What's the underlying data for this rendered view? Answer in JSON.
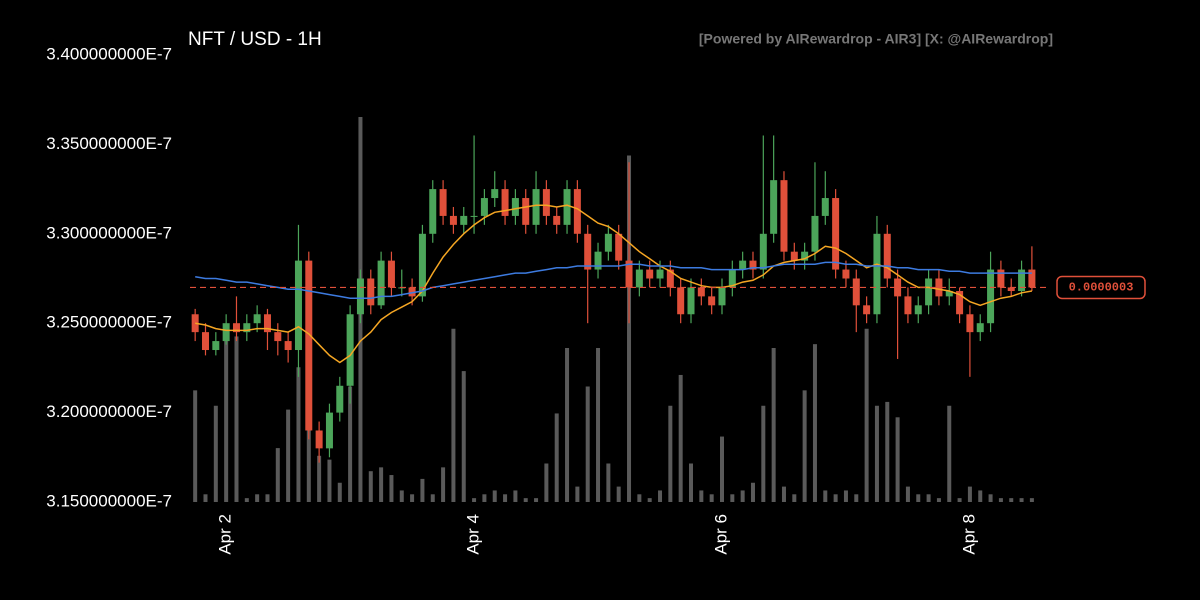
{
  "chart_data": {
    "type": "candlestick",
    "title": "NFT / USD - 1H",
    "watermark": "[Powered by AIRewardrop - AIR3] [X: @AIRewardrop]",
    "categories": [
      null,
      null,
      null,
      "Apr 2",
      null,
      null,
      null,
      null,
      null,
      null,
      null,
      null,
      null,
      null,
      null,
      null,
      null,
      null,
      null,
      null,
      null,
      null,
      null,
      null,
      null,
      null,
      null,
      "Apr 4",
      null,
      null,
      null,
      null,
      null,
      null,
      null,
      null,
      null,
      null,
      null,
      null,
      null,
      null,
      null,
      null,
      null,
      null,
      null,
      null,
      null,
      null,
      null,
      "Apr 6",
      null,
      null,
      null,
      null,
      null,
      null,
      null,
      null,
      null,
      null,
      null,
      null,
      null,
      null,
      null,
      null,
      null,
      null,
      null,
      null,
      null,
      null,
      null,
      "Apr 8",
      null,
      null,
      null,
      null,
      null,
      null
    ],
    "open": [
      3.255e-07,
      3.245e-07,
      3.235e-07,
      3.24e-07,
      3.25e-07,
      3.245e-07,
      3.25e-07,
      3.255e-07,
      3.245e-07,
      3.24e-07,
      3.235e-07,
      3.285e-07,
      3.19e-07,
      3.18e-07,
      3.2e-07,
      3.215e-07,
      3.255e-07,
      3.275e-07,
      3.26e-07,
      3.285e-07,
      3.27e-07,
      3.27e-07,
      3.265e-07,
      3.3e-07,
      3.325e-07,
      3.31e-07,
      3.305e-07,
      3.31e-07,
      3.31e-07,
      3.32e-07,
      3.325e-07,
      3.31e-07,
      3.32e-07,
      3.305e-07,
      3.325e-07,
      3.31e-07,
      3.305e-07,
      3.325e-07,
      3.3e-07,
      3.28e-07,
      3.29e-07,
      3.3e-07,
      3.285e-07,
      3.27e-07,
      3.28e-07,
      3.275e-07,
      3.28e-07,
      3.27e-07,
      3.255e-07,
      3.27e-07,
      3.265e-07,
      3.26e-07,
      3.27e-07,
      3.28e-07,
      3.285e-07,
      3.28e-07,
      3.3e-07,
      3.33e-07,
      3.29e-07,
      3.285e-07,
      3.29e-07,
      3.31e-07,
      3.32e-07,
      3.28e-07,
      3.275e-07,
      3.26e-07,
      3.255e-07,
      3.3e-07,
      3.275e-07,
      3.265e-07,
      3.255e-07,
      3.26e-07,
      3.275e-07,
      3.265e-07,
      3.268e-07,
      3.255e-07,
      3.245e-07,
      3.25e-07,
      3.28e-07,
      3.27e-07,
      3.268e-07,
      3.28e-07
    ],
    "high": [
      3.258e-07,
      3.25e-07,
      3.245e-07,
      3.255e-07,
      3.265e-07,
      3.255e-07,
      3.26e-07,
      3.258e-07,
      3.25e-07,
      3.245e-07,
      3.305e-07,
      3.29e-07,
      3.195e-07,
      3.205e-07,
      3.22e-07,
      3.26e-07,
      3.28e-07,
      3.28e-07,
      3.29e-07,
      3.29e-07,
      3.28e-07,
      3.275e-07,
      3.305e-07,
      3.33e-07,
      3.33e-07,
      3.315e-07,
      3.315e-07,
      3.355e-07,
      3.325e-07,
      3.335e-07,
      3.33e-07,
      3.325e-07,
      3.325e-07,
      3.335e-07,
      3.33e-07,
      3.315e-07,
      3.33e-07,
      3.33e-07,
      3.305e-07,
      3.295e-07,
      3.305e-07,
      3.305e-07,
      3.34e-07,
      3.285e-07,
      3.285e-07,
      3.285e-07,
      3.285e-07,
      3.275e-07,
      3.275e-07,
      3.275e-07,
      3.27e-07,
      3.275e-07,
      3.285e-07,
      3.29e-07,
      3.29e-07,
      3.355e-07,
      3.355e-07,
      3.335e-07,
      3.295e-07,
      3.295e-07,
      3.34e-07,
      3.335e-07,
      3.325e-07,
      3.285e-07,
      3.28e-07,
      3.265e-07,
      3.31e-07,
      3.305e-07,
      3.28e-07,
      3.27e-07,
      3.265e-07,
      3.28e-07,
      3.28e-07,
      3.275e-07,
      3.27e-07,
      3.26e-07,
      3.255e-07,
      3.29e-07,
      3.285e-07,
      3.275e-07,
      3.285e-07,
      3.293e-07
    ],
    "low": [
      3.24e-07,
      3.232e-07,
      3.232e-07,
      3.238e-07,
      3.24e-07,
      3.24e-07,
      3.245e-07,
      3.235e-07,
      3.232e-07,
      3.228e-07,
      3.22e-07,
      3.185e-07,
      3.172e-07,
      3.175e-07,
      3.195e-07,
      3.205e-07,
      3.25e-07,
      3.255e-07,
      3.258e-07,
      3.265e-07,
      3.265e-07,
      3.26e-07,
      3.262e-07,
      3.295e-07,
      3.305e-07,
      3.3e-07,
      3.3e-07,
      3.3e-07,
      3.305e-07,
      3.315e-07,
      3.305e-07,
      3.305e-07,
      3.3e-07,
      3.3e-07,
      3.305e-07,
      3.3e-07,
      3.3e-07,
      3.295e-07,
      3.25e-07,
      3.275e-07,
      3.285e-07,
      3.28e-07,
      3.25e-07,
      3.265e-07,
      3.27e-07,
      3.27e-07,
      3.265e-07,
      3.25e-07,
      3.25e-07,
      3.26e-07,
      3.255e-07,
      3.255e-07,
      3.265e-07,
      3.275e-07,
      3.275e-07,
      3.275e-07,
      3.295e-07,
      3.285e-07,
      3.28e-07,
      3.28e-07,
      3.285e-07,
      3.305e-07,
      3.275e-07,
      3.27e-07,
      3.245e-07,
      3.25e-07,
      3.25e-07,
      3.27e-07,
      3.23e-07,
      3.25e-07,
      3.25e-07,
      3.255e-07,
      3.26e-07,
      3.26e-07,
      3.25e-07,
      3.22e-07,
      3.24e-07,
      3.245e-07,
      3.265e-07,
      3.265e-07,
      3.265e-07,
      3.268e-07
    ],
    "close": [
      3.245e-07,
      3.235e-07,
      3.24e-07,
      3.25e-07,
      3.245e-07,
      3.25e-07,
      3.255e-07,
      3.245e-07,
      3.24e-07,
      3.235e-07,
      3.285e-07,
      3.19e-07,
      3.18e-07,
      3.2e-07,
      3.215e-07,
      3.255e-07,
      3.275e-07,
      3.26e-07,
      3.285e-07,
      3.27e-07,
      3.27e-07,
      3.265e-07,
      3.3e-07,
      3.325e-07,
      3.31e-07,
      3.305e-07,
      3.31e-07,
      3.31e-07,
      3.32e-07,
      3.325e-07,
      3.31e-07,
      3.32e-07,
      3.305e-07,
      3.325e-07,
      3.31e-07,
      3.305e-07,
      3.325e-07,
      3.3e-07,
      3.28e-07,
      3.29e-07,
      3.3e-07,
      3.285e-07,
      3.27e-07,
      3.28e-07,
      3.275e-07,
      3.28e-07,
      3.27e-07,
      3.255e-07,
      3.27e-07,
      3.265e-07,
      3.26e-07,
      3.27e-07,
      3.28e-07,
      3.285e-07,
      3.28e-07,
      3.3e-07,
      3.33e-07,
      3.29e-07,
      3.285e-07,
      3.29e-07,
      3.31e-07,
      3.32e-07,
      3.28e-07,
      3.275e-07,
      3.26e-07,
      3.255e-07,
      3.3e-07,
      3.275e-07,
      3.265e-07,
      3.255e-07,
      3.26e-07,
      3.275e-07,
      3.265e-07,
      3.268e-07,
      3.255e-07,
      3.245e-07,
      3.25e-07,
      3.28e-07,
      3.27e-07,
      3.268e-07,
      3.28e-07,
      3.27e-07
    ],
    "volume": [
      29,
      2,
      25,
      45,
      43,
      1,
      2,
      2,
      14,
      24,
      35,
      48,
      12,
      11,
      5,
      30,
      100,
      8,
      9,
      7,
      3,
      2,
      6,
      2,
      9,
      45,
      34,
      1,
      2,
      3,
      2,
      3,
      1,
      1,
      10,
      23,
      40,
      4,
      30,
      40,
      10,
      4,
      90,
      2,
      1,
      3,
      25,
      33,
      10,
      3,
      2,
      17,
      2,
      3,
      5,
      25,
      40,
      4,
      2,
      29,
      41,
      3,
      2,
      3,
      2,
      45,
      25,
      26,
      22,
      4,
      2,
      2,
      1,
      25,
      1,
      4,
      3,
      2,
      1,
      1,
      1,
      1
    ],
    "lines": [
      {
        "color": "#f5a623",
        "values": [
          3.25e-07,
          3.249e-07,
          3.247e-07,
          3.246e-07,
          3.246e-07,
          3.246e-07,
          3.247e-07,
          3.247e-07,
          3.246e-07,
          3.245e-07,
          3.248e-07,
          3.244e-07,
          3.238e-07,
          3.232e-07,
          3.228e-07,
          3.232e-07,
          3.24e-07,
          3.245e-07,
          3.252e-07,
          3.256e-07,
          3.259e-07,
          3.262e-07,
          3.268e-07,
          3.278e-07,
          3.287e-07,
          3.294e-07,
          3.3e-07,
          3.305e-07,
          3.309e-07,
          3.312e-07,
          3.313e-07,
          3.314e-07,
          3.315e-07,
          3.316e-07,
          3.316e-07,
          3.315e-07,
          3.316e-07,
          3.314e-07,
          3.31e-07,
          3.306e-07,
          3.304e-07,
          3.3e-07,
          3.295e-07,
          3.29e-07,
          3.286e-07,
          3.282e-07,
          3.279e-07,
          3.275e-07,
          3.273e-07,
          3.271e-07,
          3.27e-07,
          3.27e-07,
          3.271e-07,
          3.273e-07,
          3.274e-07,
          3.277e-07,
          3.282e-07,
          3.284e-07,
          3.285e-07,
          3.286e-07,
          3.289e-07,
          3.293e-07,
          3.292e-07,
          3.289e-07,
          3.285e-07,
          3.281e-07,
          3.283e-07,
          3.281e-07,
          3.277e-07,
          3.273e-07,
          3.27e-07,
          3.27e-07,
          3.269e-07,
          3.268e-07,
          3.266e-07,
          3.262e-07,
          3.26e-07,
          3.262e-07,
          3.264e-07,
          3.265e-07,
          3.267e-07,
          3.268e-07
        ]
      },
      {
        "color": "#3d7be0",
        "values": [
          3.276e-07,
          3.275e-07,
          3.275e-07,
          3.274e-07,
          3.273e-07,
          3.273e-07,
          3.272e-07,
          3.271e-07,
          3.27e-07,
          3.269e-07,
          3.269e-07,
          3.268e-07,
          3.267e-07,
          3.266e-07,
          3.265e-07,
          3.264e-07,
          3.264e-07,
          3.264e-07,
          3.265e-07,
          3.265e-07,
          3.266e-07,
          3.267e-07,
          3.268e-07,
          3.27e-07,
          3.271e-07,
          3.272e-07,
          3.273e-07,
          3.274e-07,
          3.275e-07,
          3.276e-07,
          3.277e-07,
          3.278e-07,
          3.278e-07,
          3.279e-07,
          3.28e-07,
          3.281e-07,
          3.281e-07,
          3.282e-07,
          3.282e-07,
          3.282e-07,
          3.282e-07,
          3.282e-07,
          3.283e-07,
          3.283e-07,
          3.282e-07,
          3.282e-07,
          3.282e-07,
          3.281e-07,
          3.281e-07,
          3.281e-07,
          3.28e-07,
          3.28e-07,
          3.28e-07,
          3.28e-07,
          3.281e-07,
          3.281e-07,
          3.282e-07,
          3.283e-07,
          3.283e-07,
          3.283e-07,
          3.283e-07,
          3.284e-07,
          3.284e-07,
          3.283e-07,
          3.283e-07,
          3.282e-07,
          3.282e-07,
          3.282e-07,
          3.281e-07,
          3.281e-07,
          3.28e-07,
          3.28e-07,
          3.28e-07,
          3.279e-07,
          3.279e-07,
          3.278e-07,
          3.278e-07,
          3.278e-07,
          3.278e-07,
          3.278e-07,
          3.278e-07,
          3.278e-07
        ]
      }
    ],
    "up_color": "#4ca55a",
    "down_color": "#e0503a",
    "volume_color": "#5a5a5a",
    "last_price": {
      "value": 3.27e-07,
      "label": "0.0000003"
    },
    "ylim": [
      3.15e-07,
      3.4e-07
    ],
    "yticks": [
      {
        "value": 3.4e-07,
        "label": "3.400000000E-7"
      },
      {
        "value": 3.35e-07,
        "label": "3.350000000E-7"
      },
      {
        "value": 3.3e-07,
        "label": "3.300000000E-7"
      },
      {
        "value": 3.25e-07,
        "label": "3.250000000E-7"
      },
      {
        "value": 3.2e-07,
        "label": "3.200000000E-7"
      },
      {
        "value": 3.15e-07,
        "label": "3.150000000E-7"
      }
    ]
  }
}
